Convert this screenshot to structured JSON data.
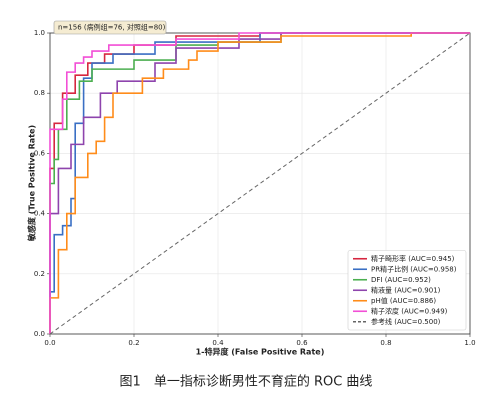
{
  "chart_data": {
    "type": "line",
    "annotation": "n=156 (病例组=76, 对照组=80)",
    "xlabel": "1-特异度 (False Positive Rate)",
    "ylabel": "敏感度 (True Positive Rate)",
    "caption": "图1　单一指标诊断男性不育症的 ROC 曲线",
    "xlim": [
      0,
      1
    ],
    "ylim": [
      0,
      1
    ],
    "xticks": [
      {
        "value": 0,
        "label": "0.0"
      },
      0.2,
      0.4,
      0.6,
      0.8,
      {
        "value": 1,
        "label": "1.0"
      }
    ],
    "yticks": [
      {
        "value": 0,
        "label": "0.0"
      },
      0.2,
      0.4,
      0.6,
      0.8,
      {
        "value": 1,
        "label": "1.0"
      }
    ],
    "grid": true,
    "legend": "lower right",
    "series": [
      {
        "name": "精子畸形率 (AUC=0.945)",
        "color": "#d6273f",
        "linestyle": "solid",
        "x": [
          0,
          0,
          0.01,
          0.01,
          0.03,
          0.03,
          0.06,
          0.06,
          0.09,
          0.09,
          0.13,
          0.13,
          0.2,
          0.2,
          0.3,
          0.3,
          0.5,
          0.5,
          1
        ],
        "values": [
          0,
          0.55,
          0.55,
          0.7,
          0.7,
          0.8,
          0.8,
          0.86,
          0.86,
          0.9,
          0.9,
          0.93,
          0.93,
          0.96,
          0.96,
          0.99,
          0.99,
          1,
          1
        ]
      },
      {
        "name": "PR精子比例 (AUC=0.958)",
        "color": "#3a6fc4",
        "linestyle": "solid",
        "x": [
          0,
          0,
          0.01,
          0.01,
          0.03,
          0.03,
          0.05,
          0.05,
          0.06,
          0.06,
          0.08,
          0.08,
          0.1,
          0.1,
          0.15,
          0.15,
          0.25,
          0.25,
          0.5,
          0.5,
          1
        ],
        "values": [
          0,
          0.14,
          0.14,
          0.33,
          0.33,
          0.36,
          0.36,
          0.45,
          0.45,
          0.7,
          0.7,
          0.85,
          0.85,
          0.9,
          0.9,
          0.93,
          0.93,
          0.97,
          0.97,
          1,
          1
        ]
      },
      {
        "name": "DFI (AUC=0.952)",
        "color": "#4caf50",
        "linestyle": "solid",
        "x": [
          0,
          0,
          0.01,
          0.01,
          0.02,
          0.02,
          0.04,
          0.04,
          0.07,
          0.07,
          0.1,
          0.1,
          0.2,
          0.2,
          0.3,
          0.3,
          0.4,
          0.4,
          0.55,
          0.55,
          1
        ],
        "values": [
          0,
          0.5,
          0.5,
          0.58,
          0.58,
          0.68,
          0.68,
          0.78,
          0.78,
          0.84,
          0.84,
          0.88,
          0.88,
          0.91,
          0.91,
          0.96,
          0.96,
          0.97,
          0.97,
          1,
          1
        ]
      },
      {
        "name": "精液量 (AUC=0.901)",
        "color": "#8e44ad",
        "linestyle": "solid",
        "x": [
          0,
          0,
          0.02,
          0.02,
          0.05,
          0.05,
          0.08,
          0.08,
          0.12,
          0.12,
          0.16,
          0.16,
          0.25,
          0.25,
          0.3,
          0.3,
          0.45,
          0.45,
          0.55,
          0.55,
          1
        ],
        "values": [
          0,
          0.4,
          0.4,
          0.55,
          0.55,
          0.63,
          0.63,
          0.72,
          0.72,
          0.8,
          0.8,
          0.84,
          0.84,
          0.9,
          0.9,
          0.95,
          0.95,
          0.98,
          0.98,
          1,
          1
        ]
      },
      {
        "name": "pH值 (AUC=0.886)",
        "color": "#ff8c1a",
        "linestyle": "solid",
        "x": [
          0,
          0,
          0.02,
          0.02,
          0.04,
          0.04,
          0.06,
          0.06,
          0.09,
          0.09,
          0.11,
          0.11,
          0.13,
          0.13,
          0.15,
          0.15,
          0.22,
          0.22,
          0.27,
          0.27,
          0.33,
          0.33,
          0.35,
          0.35,
          0.4,
          0.4,
          0.55,
          0.55,
          0.86,
          0.86,
          1
        ],
        "values": [
          0,
          0.12,
          0.12,
          0.28,
          0.28,
          0.4,
          0.4,
          0.52,
          0.52,
          0.6,
          0.6,
          0.64,
          0.64,
          0.72,
          0.72,
          0.8,
          0.8,
          0.85,
          0.85,
          0.88,
          0.88,
          0.91,
          0.91,
          0.94,
          0.94,
          0.97,
          0.97,
          0.99,
          0.99,
          1,
          1
        ]
      },
      {
        "name": "精子浓度 (AUC=0.949)",
        "color": "#f24fd6",
        "linestyle": "solid",
        "x": [
          0,
          0,
          0.03,
          0.03,
          0.04,
          0.04,
          0.06,
          0.06,
          0.08,
          0.08,
          0.1,
          0.1,
          0.14,
          0.14,
          0.3,
          0.3,
          0.45,
          0.45,
          1
        ],
        "values": [
          0,
          0.68,
          0.68,
          0.78,
          0.78,
          0.87,
          0.87,
          0.9,
          0.9,
          0.92,
          0.92,
          0.94,
          0.94,
          0.96,
          0.96,
          0.98,
          0.98,
          1,
          1
        ]
      },
      {
        "name": "参考线 (AUC=0.500)",
        "color": "#666666",
        "linestyle": "dashed",
        "x": [
          0,
          1
        ],
        "values": [
          0,
          1
        ]
      }
    ]
  }
}
